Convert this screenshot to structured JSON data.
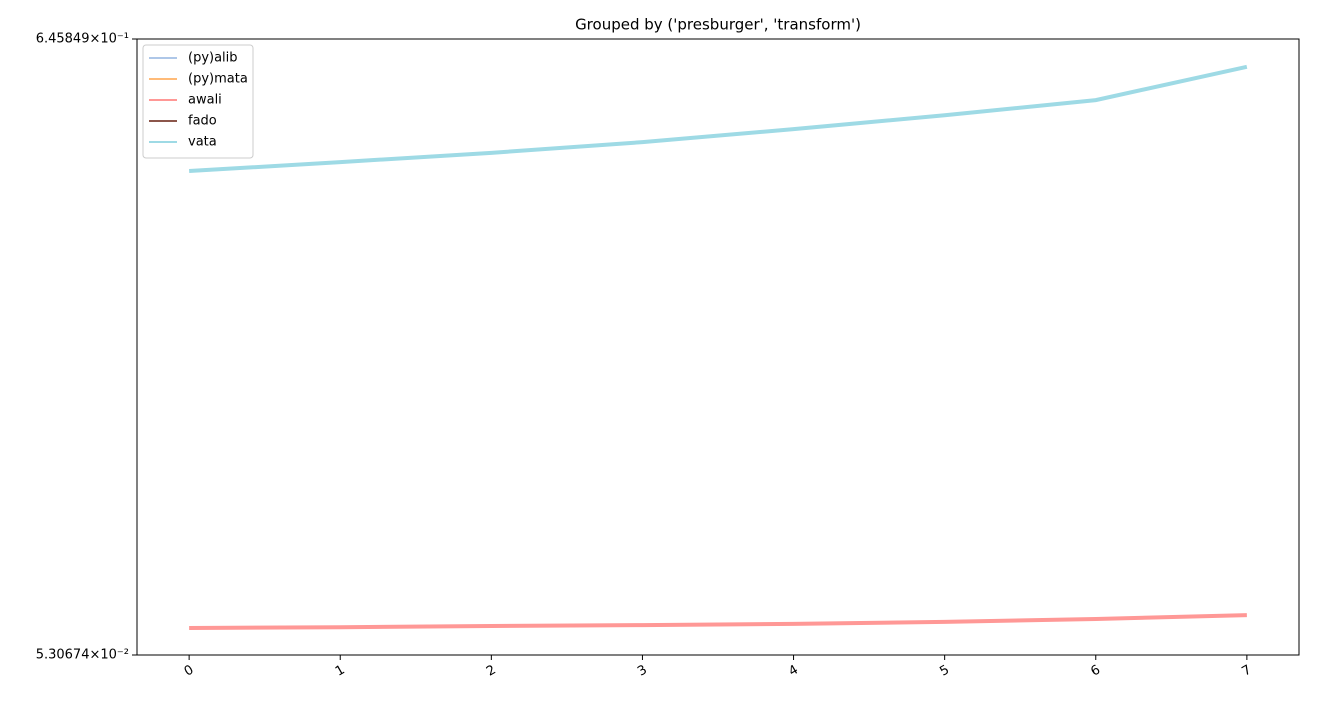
{
  "chart_data": {
    "type": "line",
    "title": "Grouped by ('presburger', 'transform')",
    "x": [
      0,
      1,
      2,
      3,
      4,
      5,
      6,
      7
    ],
    "series": [
      {
        "name": "(py)alib",
        "color": "#aec7e8",
        "values": [
          null,
          null,
          null,
          null,
          null,
          null,
          null,
          null
        ]
      },
      {
        "name": "(py)mata",
        "color": "#ffbb78",
        "values": [
          null,
          null,
          null,
          null,
          null,
          null,
          null,
          null
        ]
      },
      {
        "name": "awali",
        "color": "#ff9896",
        "values": [
          0.0592,
          0.0594,
          0.0597,
          0.0599,
          0.0602,
          0.0607,
          0.0614,
          0.0624
        ]
      },
      {
        "name": "fado",
        "color": "#8c564b",
        "values": [
          null,
          null,
          null,
          null,
          null,
          null,
          null,
          null
        ]
      },
      {
        "name": "vata",
        "color": "#9edae5",
        "values": [
          0.378,
          0.392,
          0.407,
          0.425,
          0.448,
          0.474,
          0.504,
          0.577
        ]
      }
    ],
    "xlim": [
      -0.345,
      7.345
    ],
    "xticks": [
      0,
      1,
      2,
      3,
      4,
      5,
      6,
      7
    ],
    "ylim": [
      0.0530674,
      0.645849
    ],
    "yticks": [
      {
        "value": 0.0530674,
        "label": "5.30674×10⁻²"
      },
      {
        "value": 0.645849,
        "label": "6.45849×10⁻¹"
      }
    ],
    "yscale": "log",
    "legend": "upper left"
  }
}
